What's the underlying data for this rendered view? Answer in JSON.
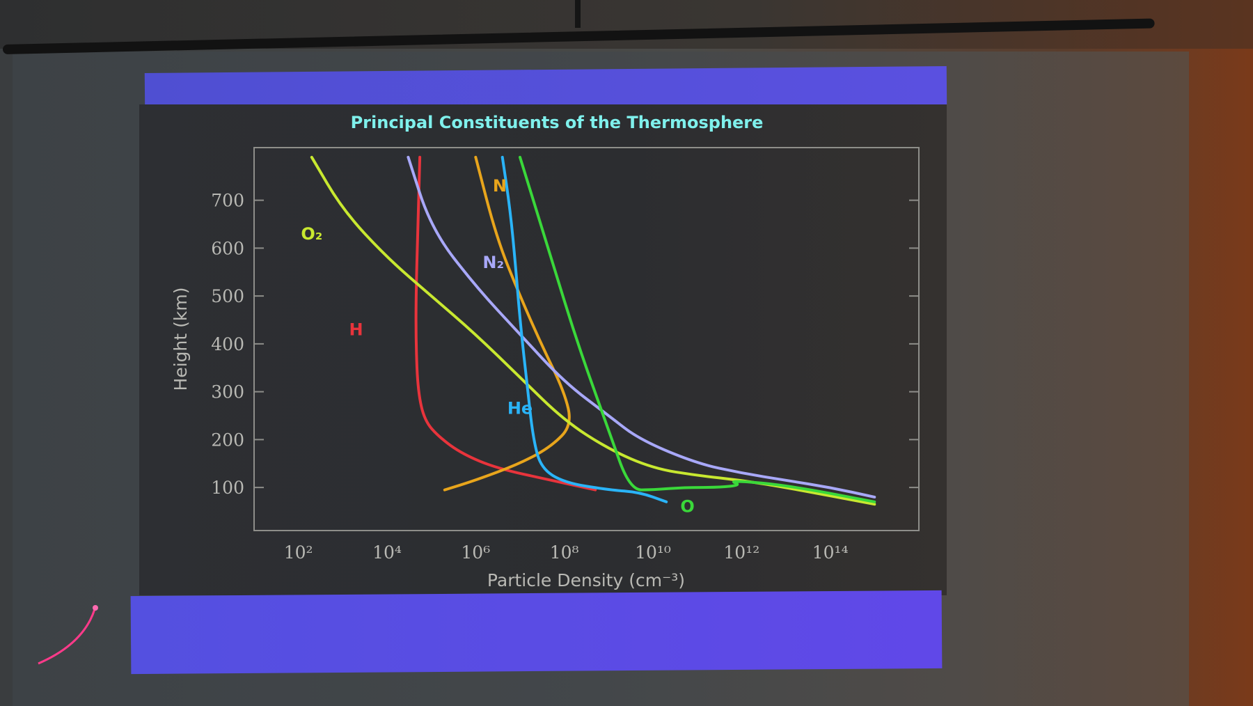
{
  "chart_data": {
    "type": "line",
    "title": "Principal Constituents of the Thermosphere",
    "xlabel": "Particle Density (cm⁻³)",
    "ylabel": "Height (km)",
    "x_scale": "log",
    "xlim": [
      10,
      1e+16
    ],
    "ylim": [
      10,
      810
    ],
    "x_ticks": [
      100,
      10000,
      1000000,
      100000000,
      10000000000,
      1000000000000,
      100000000000000
    ],
    "x_tick_labels": [
      "10²",
      "10⁴",
      "10⁶",
      "10⁸",
      "10¹⁰",
      "10¹²",
      "10¹⁴"
    ],
    "y_ticks": [
      100,
      200,
      300,
      400,
      500,
      600,
      700
    ],
    "y_tick_labels": [
      "100",
      "200",
      "300",
      "400",
      "500",
      "600",
      "700"
    ],
    "grid": false,
    "legend": "none",
    "series": [
      {
        "name": "H",
        "color": "#e8343c",
        "label_at": [
          2000,
          430
        ],
        "x": [
          500000000,
          50000000,
          3000000,
          500000,
          150000,
          70000,
          50000,
          45000,
          45000,
          50000,
          55000
        ],
        "y": [
          95,
          115,
          140,
          170,
          205,
          240,
          300,
          400,
          500,
          650,
          790
        ]
      },
      {
        "name": "N",
        "color": "#e8a51c",
        "label_at": [
          3500000,
          730
        ],
        "x": [
          200000,
          1000000,
          10000000,
          50000000,
          150000000,
          100000000,
          30000000,
          10000000,
          3000000,
          1000000
        ],
        "y": [
          95,
          115,
          150,
          185,
          230,
          300,
          400,
          500,
          620,
          790
        ]
      },
      {
        "name": "N₂",
        "color": "#a8a8f8",
        "label_at": [
          2500000,
          570
        ],
        "x": [
          1000000000000000.0,
          100000000000000.0,
          10000000000000.0,
          1000000000000.0,
          100000000000.0,
          5000000000,
          1000000000,
          100000000,
          10000000,
          1000000,
          100000,
          30000
        ],
        "y": [
          80,
          100,
          115,
          130,
          150,
          200,
          250,
          320,
          420,
          520,
          640,
          790
        ]
      },
      {
        "name": "O₂",
        "color": "#c8e830",
        "label_at": [
          200,
          630
        ],
        "x": [
          1000000000000000.0,
          10000000000000.0,
          1000000000000.0,
          100000000000.0,
          10000000000,
          1000000000,
          100000000,
          10000000,
          1000000,
          100000,
          10000,
          1000,
          200
        ],
        "y": [
          65,
          100,
          115,
          125,
          140,
          180,
          240,
          330,
          420,
          500,
          580,
          680,
          790
        ]
      },
      {
        "name": "He",
        "color": "#2ab4f8",
        "label_at": [
          10000000,
          265
        ],
        "x": [
          20000000000,
          5000000000,
          1000000000,
          100000000,
          30000000,
          20000000,
          15000000,
          10000000,
          8000000,
          6000000,
          4000000
        ],
        "y": [
          70,
          90,
          95,
          110,
          140,
          200,
          300,
          450,
          560,
          680,
          790
        ]
      },
      {
        "name": "O",
        "color": "#3ad83a",
        "label_at": [
          60000000000,
          60
        ],
        "x": [
          1000000000000000.0,
          10000000000000.0,
          500000000000,
          1000000000000.0,
          300000000000,
          50000000000,
          10000000000,
          3000000000,
          1000000000,
          200000000,
          50000000,
          10000000
        ],
        "y": [
          70,
          105,
          115,
          105,
          100,
          100,
          95,
          95,
          220,
          400,
          580,
          790
        ]
      }
    ]
  }
}
